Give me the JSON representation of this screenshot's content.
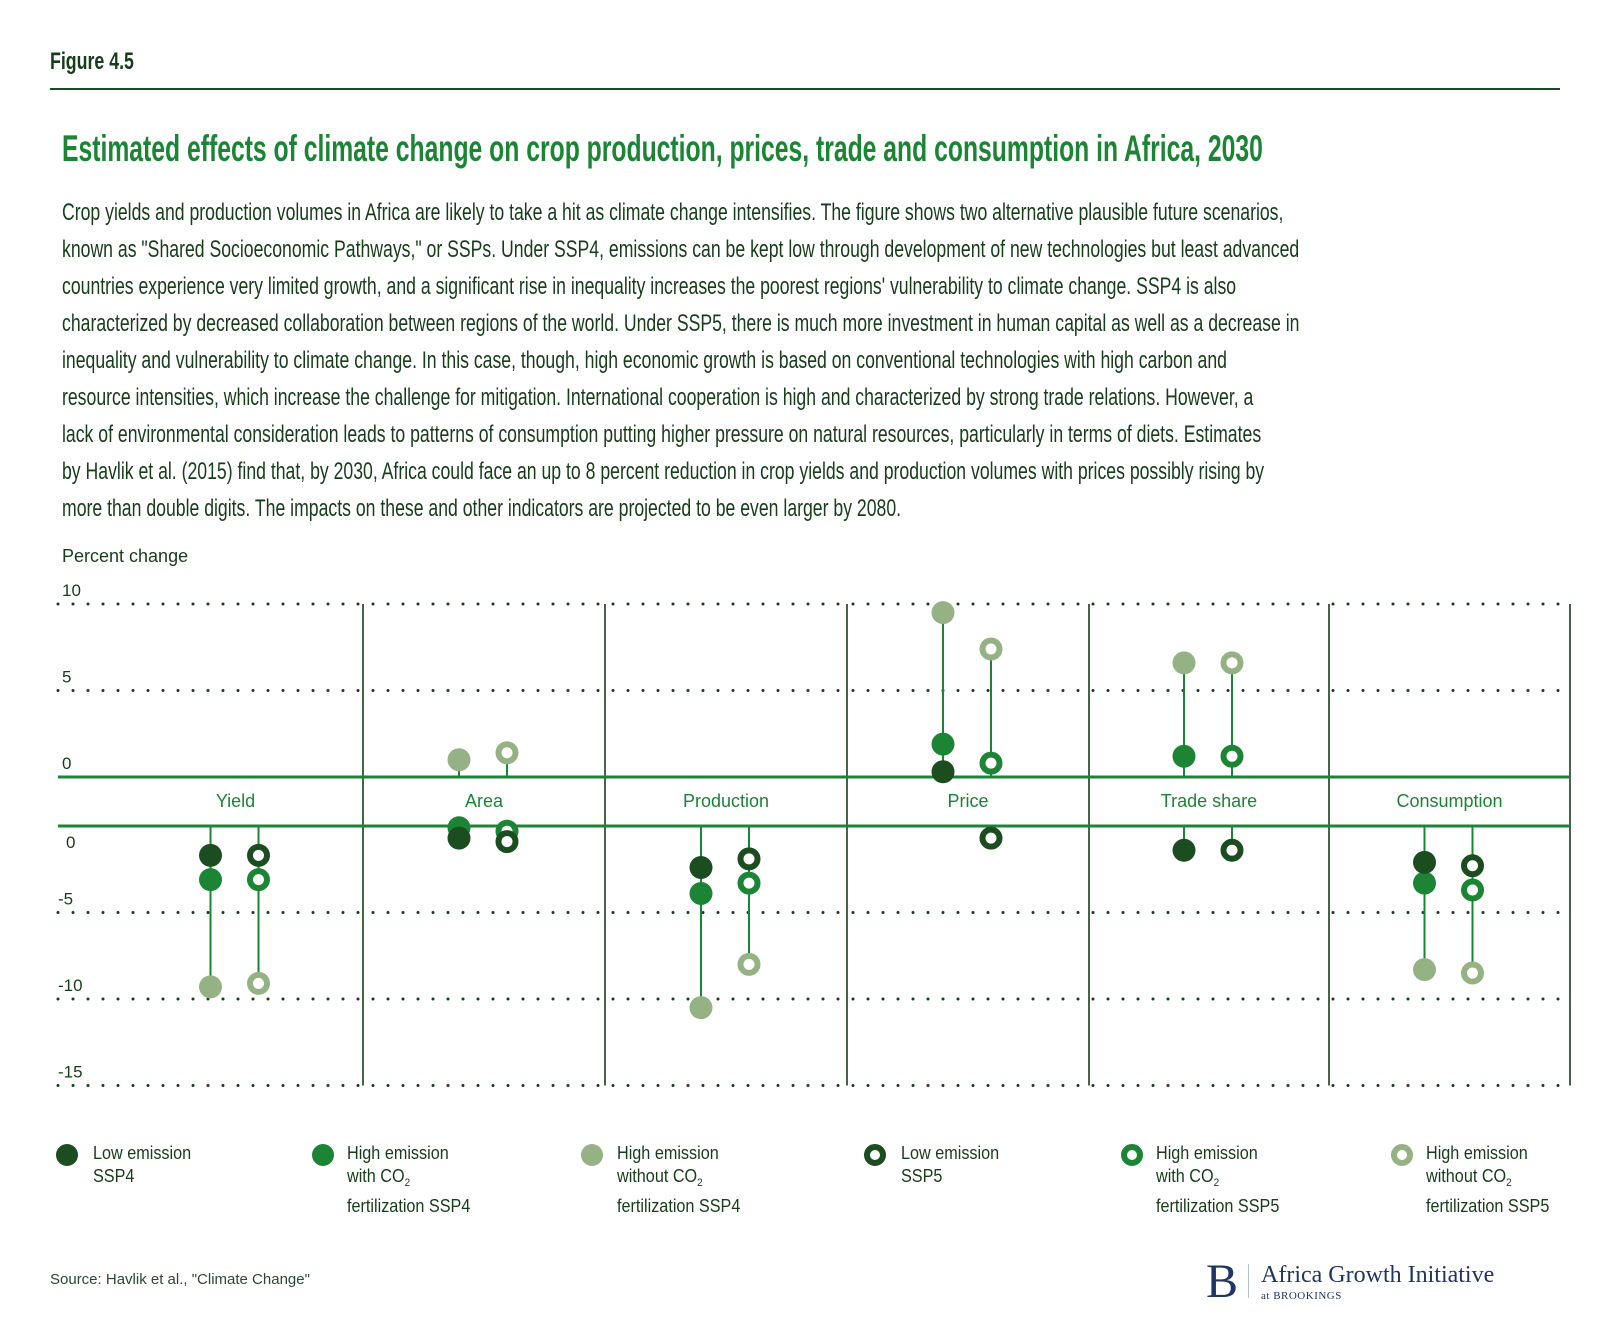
{
  "figure_label": "Figure 4.5",
  "title": "Estimated effects of climate change on crop production, prices, trade and consumption in Africa, 2030",
  "description_lines": [
    "Crop yields and production volumes in Africa are likely to take a hit as climate change intensifies. The figure shows two alternative plausible future scenarios,",
    "known as \"Shared Socioeconomic Pathways,\" or SSPs. Under SSP4, emissions can be kept low through development of new technologies but least advanced",
    "countries experience very limited growth, and a significant rise in inequality increases the poorest regions' vulnerability to climate change. SSP4 is also",
    "characterized by decreased collaboration between regions of the world. Under SSP5, there is much more investment in human capital as well as a decrease in",
    "inequality and vulnerability to climate change. In this case, though, high economic growth is based on conventional technologies with high carbon and",
    "resource intensities, which increase the challenge for mitigation. International cooperation is high and characterized by strong trade relations. However, a",
    "lack of environmental consideration leads to patterns of consumption putting higher pressure on natural resources, particularly in terms of diets. Estimates",
    "by Havlik et al. (2015) find that, by 2030, Africa could face an up to 8 percent reduction in crop yields and production volumes with prices possibly rising by",
    "more than double digits. The impacts on these and other indicators are projected to be even larger by 2080."
  ],
  "colors": {
    "dark": "#1b4d20",
    "medium": "#1b8535",
    "light": "#95b284",
    "axis": "#1b8535",
    "text": "#173d1a",
    "logo": "#1f3565"
  },
  "chart_data": {
    "type": "scatter",
    "subtype": "dot-plot (lollipop) with split positive / negative panels",
    "ylabel": "Percent change",
    "upper_panel": {
      "ylim": [
        0,
        10
      ],
      "ticks": [
        "10",
        "5",
        "0"
      ],
      "tick_values": [
        10,
        5,
        0
      ]
    },
    "lower_panel": {
      "ylim": [
        -15,
        0
      ],
      "ticks": [
        "0",
        "-5",
        "-10",
        "-15"
      ],
      "tick_values": [
        0,
        -5,
        -10,
        -15
      ]
    },
    "grid": "dotted horizontal",
    "categories": [
      "Yield",
      "Area",
      "Production",
      "Price",
      "Trade share",
      "Consumption"
    ],
    "scenarios": [
      "SSP4",
      "SSP5"
    ],
    "series": [
      {
        "key": "low_ssp4",
        "name": "Low emission SSP4",
        "scenario": "SSP4",
        "marker": "filled",
        "color": "dark",
        "values": [
          -1.7,
          -0.7,
          -2.4,
          0.3,
          -1.4,
          -2.1
        ]
      },
      {
        "key": "with_ssp4",
        "name": "High emission with CO2 fertilization SSP4",
        "scenario": "SSP4",
        "marker": "filled",
        "color": "medium",
        "values": [
          -3.1,
          -0.1,
          -3.9,
          1.9,
          1.2,
          -3.3
        ]
      },
      {
        "key": "without_ssp4",
        "name": "High emission without CO2 fertilization SSP4",
        "scenario": "SSP4",
        "marker": "filled",
        "color": "light",
        "values": [
          -9.3,
          1.0,
          -10.5,
          9.5,
          6.6,
          -8.3
        ]
      },
      {
        "key": "low_ssp5",
        "name": "Low emission SSP5",
        "scenario": "SSP5",
        "marker": "ring",
        "color": "dark",
        "values": [
          -1.7,
          -0.9,
          -1.9,
          -0.7,
          -1.4,
          -2.3
        ]
      },
      {
        "key": "with_ssp5",
        "name": "High emission with CO2 fertilization SSP5",
        "scenario": "SSP5",
        "marker": "ring",
        "color": "medium",
        "values": [
          -3.1,
          -0.3,
          -3.3,
          0.8,
          1.2,
          -3.7
        ]
      },
      {
        "key": "without_ssp5",
        "name": "High emission without CO2 fertilization SSP5",
        "scenario": "SSP5",
        "marker": "ring",
        "color": "light",
        "values": [
          -9.1,
          1.4,
          -8.0,
          7.4,
          6.6,
          -8.5
        ]
      }
    ],
    "legend": [
      {
        "lines": [
          "Low emission",
          "SSP4"
        ],
        "marker": "filled",
        "color": "dark"
      },
      {
        "lines": [
          "High emission",
          "with CO",
          "fertilization SSP4"
        ],
        "co2_line": 1,
        "marker": "filled",
        "color": "medium"
      },
      {
        "lines": [
          "High emission",
          "without CO",
          "fertilization SSP4"
        ],
        "co2_line": 1,
        "marker": "filled",
        "color": "light"
      },
      {
        "lines": [
          "Low emission",
          "SSP5"
        ],
        "marker": "ring",
        "color": "dark"
      },
      {
        "lines": [
          "High emission",
          "with CO",
          "fertilization SSP5"
        ],
        "co2_line": 1,
        "marker": "ring",
        "color": "medium"
      },
      {
        "lines": [
          "High emission",
          "without CO",
          "fertilization SSP5"
        ],
        "co2_line": 1,
        "marker": "ring",
        "color": "light"
      }
    ],
    "legend_position": "bottom",
    "co2_subscript": "2"
  },
  "source": "Source: Havlik et al., \"Climate Change\"",
  "logo": {
    "letter": "B",
    "name": "Africa Growth Initiative",
    "sub": "at BROOKINGS"
  }
}
